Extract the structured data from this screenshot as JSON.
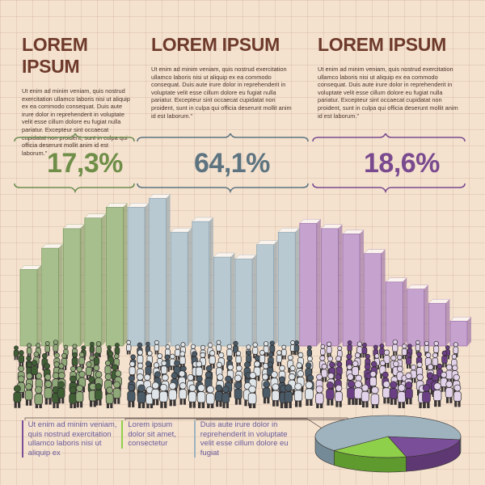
{
  "sections": [
    {
      "title": "LOREM IPSUM",
      "body": "Ut enim ad minim veniam, quis nostrud exercitation ullamco laboris nisi ut aliquip ex ea commodo consequat. Duis aute irure dolor in reprehenderit in voluptate velit esse cillum dolore eu fugiat nulla pariatur. Excepteur sint occaecat cupidatat non proident, sunt in culpa qui officia deserunt mollit anim id est laborum.\"",
      "percent": "17,3%"
    },
    {
      "title": "LOREM IPSUM",
      "body": "Ut enim ad minim veniam, quis nostrud exercitation ullamco laboris nisi ut aliquip ex ea commodo consequat. Duis aute irure dolor in reprehenderit in voluptate velit esse cillum dolore eu fugiat nulla pariatur. Excepteur sint occaecat cupidatat non proident, sunt in culpa qui officia deserunt mollit anim id est laborum.\"",
      "percent": "64,1%"
    },
    {
      "title": "LOREM IPSUM",
      "body": "Ut enim ad minim veniam, quis nostrud exercitation ullamco laboris nisi ut aliquip ex ea commodo consequat. Duis aute irure dolor in reprehenderit in voluptate velit esse cillum dolore eu fugiat nulla pariatur. Excepteur sint occaecat cupidatat non proident, sunt in culpa qui officia deserunt mollit anim id est laborum.\"",
      "percent": "18,6%"
    }
  ],
  "legend": [
    {
      "text": "Ut enim ad minim veniam, quis nostrud exercitation ullamco laboris nisi ut aliquip ex",
      "color": "#7a4e98"
    },
    {
      "text": "Lorem ipsum dolor sit amet, consectetur",
      "color": "#8fd04a"
    },
    {
      "text": "Duis aute irure dolor in reprehenderit in voluptate velit esse cillum dolore eu fugiat",
      "color": "#9eb3be"
    }
  ],
  "colors": {
    "green": "#a6bf8c",
    "green_dark": "#6e8d52",
    "blue": "#b8c9d2",
    "blue_dark": "#7f98a6",
    "purple": "#c6a3cf",
    "purple_dark": "#8b5b9e",
    "title": "#6e3a2b",
    "pct_green": "#6f8e48",
    "pct_blue": "#5d7480",
    "pct_purple": "#7a4a8f"
  },
  "chart_data": [
    {
      "type": "bar",
      "title": "",
      "xlabel": "",
      "ylabel": "",
      "ylim": [
        0,
        10
      ],
      "grid": true,
      "groups": [
        "17,3%",
        "64,1%",
        "18,6%"
      ],
      "series": [
        {
          "values": [
            4.3,
            5.5,
            6.6,
            7.2,
            7.8
          ]
        },
        {
          "values": [
            7.8,
            8.3,
            6.4,
            7.0,
            5.0,
            4.9,
            5.7,
            6.4
          ]
        },
        {
          "values": [
            6.9,
            6.6,
            6.3,
            5.2,
            3.6,
            3.2,
            2.4,
            1.4
          ]
        }
      ]
    },
    {
      "type": "pie",
      "labels": [
        "Ut enim ad minim veniam, quis nostrud exercitation ullamco laboris nisi ut aliquip ex",
        "Lorem ipsum dolor sit amet, consectetur",
        "Duis aute irure dolor in reprehenderit in voluptate velit esse cillum dolore eu fugiat"
      ],
      "values": [
        18.6,
        17.3,
        64.1
      ]
    }
  ]
}
